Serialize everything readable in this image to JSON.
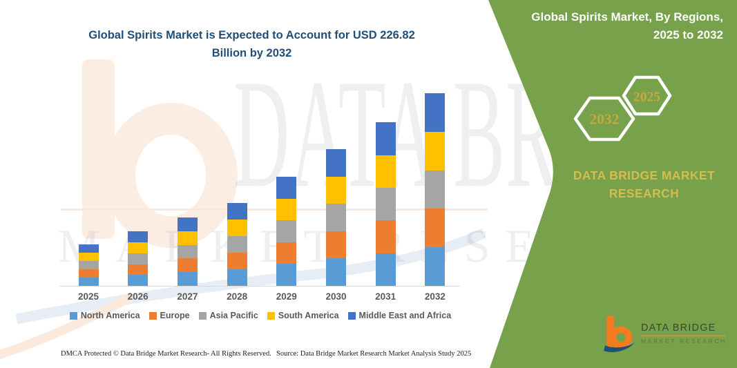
{
  "header": {
    "chart_title_line1": "Global Spirits Market is Expected to Account for USD 226.82",
    "chart_title_line2": "Billion by 2032"
  },
  "side_panel": {
    "bg_color": "#77A14B",
    "heading_line1": "Global Spirits Market, By Regions,",
    "heading_line2": "2025 to 2032",
    "hexagon_back_label": "2032",
    "hexagon_front_label": "2025",
    "hexagon_label_color": "#C8A83E",
    "brand_line1": "DATA BRIDGE MARKET",
    "brand_line2": "RESEARCH",
    "brand_color": "#D5BC51",
    "logo": {
      "title": "DATA BRIDGE",
      "subtitle": "MARKET RESEARCH",
      "b_orange": "#F47B20",
      "b_blue": "#1F4E79"
    }
  },
  "watermark": {
    "big_text": "DATA BRIDGE",
    "bottom_text": "MARKET RESEARCH"
  },
  "footer": {
    "dmca": "DMCA Protected © Data Bridge Market Research-  All Rights Reserved.",
    "source": "Source: Data Bridge Market Research  Market Analysis Study 2025"
  },
  "chart_data": {
    "type": "bar",
    "stacked": true,
    "title": "Global Spirits Market is Expected to Account for USD 226.82 Billion by 2032",
    "unit": "USD Billion",
    "categories": [
      "2025",
      "2026",
      "2027",
      "2028",
      "2029",
      "2030",
      "2031",
      "2032"
    ],
    "series": [
      {
        "name": "North America",
        "color": "#5B9BD5",
        "values": [
          9.8,
          12.8,
          16.1,
          19.5,
          25.7,
          32.2,
          38.5,
          45.4
        ]
      },
      {
        "name": "Europe",
        "color": "#ED7D31",
        "values": [
          9.8,
          12.8,
          16.1,
          19.5,
          25.7,
          32.2,
          38.5,
          45.4
        ]
      },
      {
        "name": "Asia Pacific",
        "color": "#A5A5A5",
        "values": [
          9.8,
          12.8,
          16.1,
          19.5,
          25.7,
          32.2,
          38.5,
          45.4
        ]
      },
      {
        "name": "South America",
        "color": "#FFC000",
        "values": [
          9.8,
          12.8,
          16.1,
          19.5,
          25.7,
          32.2,
          38.5,
          45.4
        ]
      },
      {
        "name": "Middle East and Africa",
        "color": "#4472C4",
        "values": [
          9.8,
          12.8,
          16.1,
          19.5,
          25.7,
          32.2,
          38.5,
          45.4
        ]
      }
    ],
    "totals_estimated": [
      49,
      64,
      80.5,
      97.5,
      128.5,
      161,
      192.5,
      227
    ],
    "ylim": [
      0,
      240
    ],
    "grid": false,
    "legend_position": "bottom"
  }
}
